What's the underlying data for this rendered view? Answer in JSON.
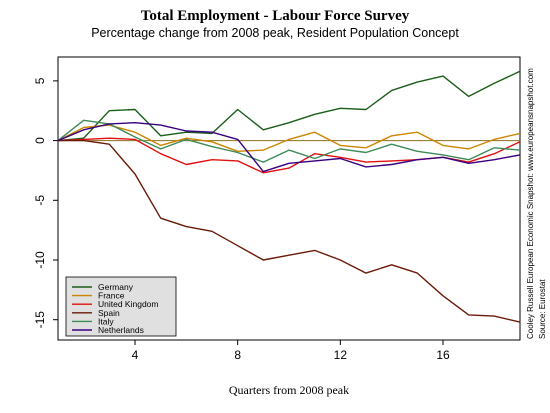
{
  "chart_data": {
    "type": "line",
    "title": "Total Employment - Labour Force Survey",
    "subtitle": "Percentage change from 2008 peak, Resident Population Concept",
    "xlabel": "Quarters from 2008 peak",
    "ylabel": "",
    "xlim": [
      1,
      19
    ],
    "ylim": [
      -16.7,
      7
    ],
    "x_ticks": [
      4,
      8,
      12,
      16
    ],
    "y_ticks": [
      5,
      0,
      -5,
      -10,
      -15
    ],
    "x": [
      1,
      2,
      3,
      4,
      5,
      6,
      7,
      8,
      9,
      10,
      11,
      12,
      13,
      14,
      15,
      16,
      17,
      18,
      19
    ],
    "series": [
      {
        "name": "Germany",
        "color": "#1a5e1a",
        "values": [
          0,
          0.2,
          2.5,
          2.6,
          0.4,
          0.7,
          0.6,
          2.6,
          0.9,
          1.5,
          2.2,
          2.7,
          2.6,
          4.2,
          4.9,
          5.4,
          3.7,
          4.8,
          5.8
        ]
      },
      {
        "name": "France",
        "color": "#cc8500",
        "values": [
          0,
          1.1,
          1.3,
          0.7,
          -0.4,
          0.2,
          -0.1,
          -0.9,
          -0.8,
          0.1,
          0.7,
          -0.4,
          -0.6,
          0.4,
          0.7,
          -0.4,
          -0.7,
          0.1,
          0.6
        ]
      },
      {
        "name": "United Kingdom",
        "color": "#e01010",
        "values": [
          0,
          0.1,
          0.2,
          0.1,
          -1.1,
          -2.0,
          -1.6,
          -1.7,
          -2.7,
          -2.3,
          -1.1,
          -1.4,
          -1.8,
          -1.7,
          -1.6,
          -1.4,
          -1.8,
          -1.1,
          -0.1
        ]
      },
      {
        "name": "Spain",
        "color": "#6b1a08",
        "values": [
          0,
          0.0,
          -0.3,
          -2.8,
          -6.5,
          -7.2,
          -7.6,
          -8.8,
          -10.0,
          -9.6,
          -9.2,
          -10.0,
          -11.1,
          -10.4,
          -11.1,
          -13.0,
          -14.6,
          -14.7,
          -15.2
        ]
      },
      {
        "name": "Italy",
        "color": "#3d8a5a",
        "values": [
          0,
          1.7,
          1.4,
          0.3,
          -0.7,
          0.1,
          -0.5,
          -1.0,
          -1.8,
          -0.8,
          -1.5,
          -0.7,
          -1.0,
          -0.3,
          -0.9,
          -1.2,
          -1.6,
          -0.6,
          -0.8
        ]
      },
      {
        "name": "Netherlands",
        "color": "#3a0080",
        "values": [
          0,
          0.9,
          1.4,
          1.5,
          1.3,
          0.8,
          0.7,
          0.1,
          -2.6,
          -1.9,
          -1.7,
          -1.5,
          -2.2,
          -2.0,
          -1.6,
          -1.4,
          -1.9,
          -1.6,
          -1.2
        ]
      }
    ],
    "zero_line_color": "#8c6e1e",
    "grid": false,
    "legend_placement": "bottom-left",
    "side_note": "Cooley Russell European Economic Snapshot: www.europeansnapshot.com",
    "source": "Source: Eurostat"
  }
}
